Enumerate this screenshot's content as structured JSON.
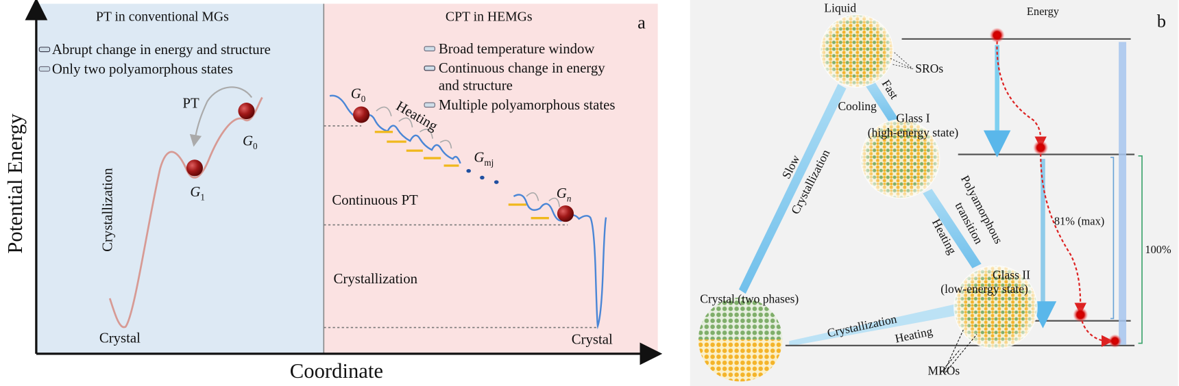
{
  "panel_a": {
    "label": "a",
    "left_title": "PT in conventional MGs",
    "right_title": "CPT in HEMGs",
    "left_legend": [
      "Abrupt change in energy and structure",
      "Only two polyamorphous states"
    ],
    "right_legend": [
      [
        "Broad temperature window"
      ],
      [
        "Continuous change in energy",
        "and structure"
      ],
      [
        "Multiple polyamorphous states"
      ]
    ],
    "pt": "PT",
    "g0_left": {
      "base": "G",
      "sub": "0"
    },
    "g1": {
      "base": "G",
      "sub": "1"
    },
    "crystallization_left": "Crystallization",
    "crystal_left": "Crystal",
    "g0_right": {
      "base": "G",
      "sub": "0"
    },
    "heating": "Heating",
    "gmj": {
      "base": "G",
      "sub": "mj"
    },
    "gn": {
      "base": "G",
      "sub": "n"
    },
    "continuous_pt": "Continuous PT",
    "crystallization_right": "Crystallization",
    "crystal_right": "Crystal",
    "y_axis": "Potential Energy",
    "x_axis": "Coordinate"
  },
  "panel_b": {
    "label": "b",
    "liquid": "Liquid",
    "energy": "Energy",
    "sros": "SROs",
    "fast": "Fast",
    "cooling": "Cooling",
    "glass_1": [
      "Glass I",
      "(high-energy state)"
    ],
    "slow": "Slow",
    "crystallization_slow": "Crystallization",
    "polyamorphous": "Polyamorphous",
    "transition": "transition",
    "heating_mid": "Heating",
    "glass_2": [
      "Glass II",
      "(low-energy state)"
    ],
    "crystal": "Crystal (two phases)",
    "crystallization_bottom": "Crystallization",
    "heating_bottom": "Heating",
    "mros": "MROs",
    "pct_81": "81% (max)",
    "pct_100": "100%"
  }
}
